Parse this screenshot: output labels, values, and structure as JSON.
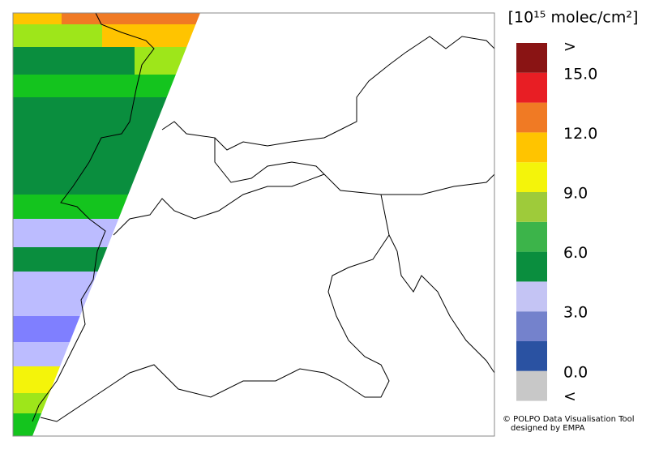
{
  "legend": {
    "title": "[10¹⁵ molec/cm²]",
    "bins": [
      0,
      1.5,
      3,
      4.5,
      6,
      7.5,
      9,
      10.5,
      12,
      13.5,
      15
    ],
    "colors": [
      "#2a52a2",
      "#7482cc",
      "#c4c4f4",
      "#0a8e3e",
      "#3cb44a",
      "#9ecb3a",
      "#f4f40a",
      "#ffc400",
      "#f07a24",
      "#e81e24"
    ],
    "under_color": "#c8c8c8",
    "over_color": "#8a1414",
    "ticks": [
      {
        "value": 0,
        "label": "0.0"
      },
      {
        "value": 3,
        "label": "3.0"
      },
      {
        "value": 6,
        "label": "6.0"
      },
      {
        "value": 9,
        "label": "9.0"
      },
      {
        "value": 12,
        "label": "12.0"
      },
      {
        "value": 15,
        "label": "15.0"
      }
    ],
    "under_label": "<",
    "over_label": ">"
  },
  "footer": {
    "line1": "© POLPO Data Visualisation Tool",
    "line2": "designed by EMPA"
  }
}
